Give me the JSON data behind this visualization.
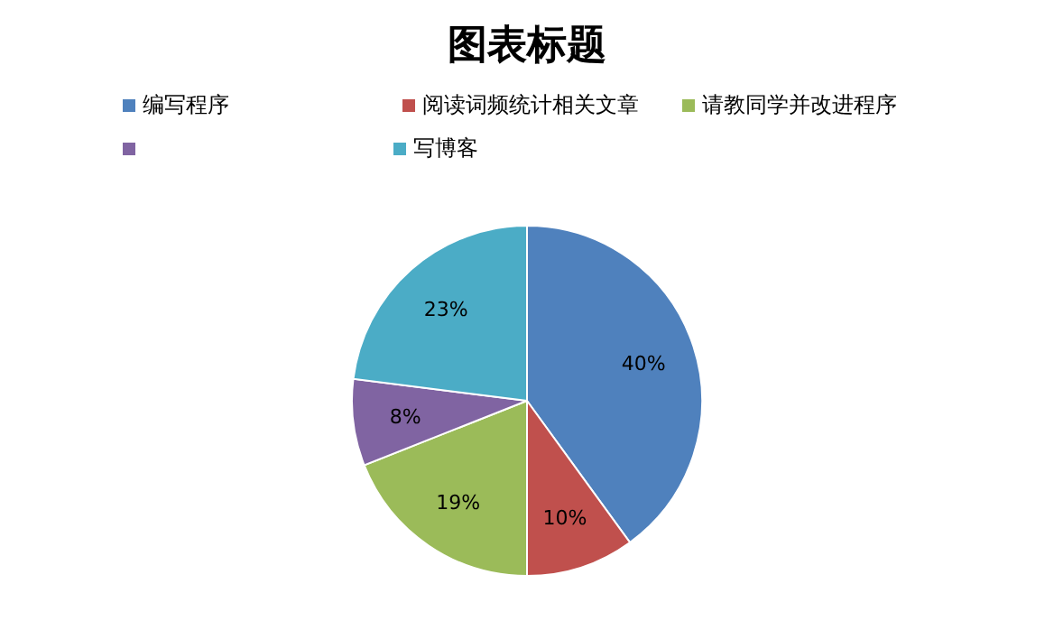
{
  "chart_data": {
    "type": "pie",
    "title": "图表标题",
    "categories": [
      "编写程序",
      "阅读词频统计相关文章",
      "请教同学并改进程序",
      null,
      "写博客"
    ],
    "values": [
      40,
      10,
      19,
      8,
      23
    ],
    "colors": [
      "#4f81bd",
      "#c0504d",
      "#9bbb59",
      "#8064a2",
      "#4bacc6"
    ],
    "value_labels": [
      "40%",
      "10%",
      "19%",
      "8%",
      "23%"
    ],
    "legend": "top"
  }
}
